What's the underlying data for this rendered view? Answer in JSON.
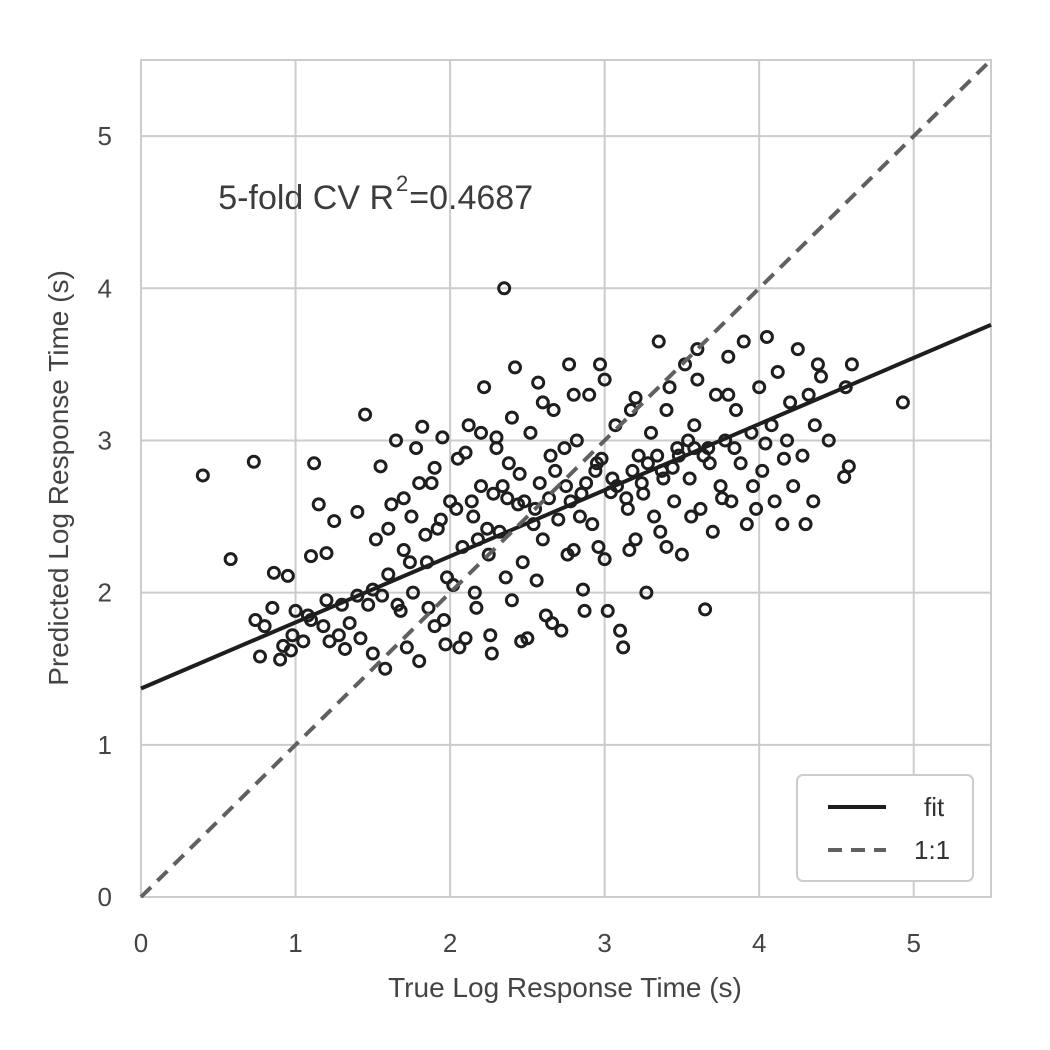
{
  "chart_data": {
    "type": "scatter",
    "xlabel": "True Log Response Time (s)",
    "ylabel": "Predicted Log Response Time (s)",
    "xlim": [
      0,
      5.5
    ],
    "ylim": [
      0,
      5.5
    ],
    "x_ticks": [
      "0",
      "1",
      "2",
      "3",
      "4",
      "5"
    ],
    "y_ticks": [
      "0",
      "1",
      "2",
      "3",
      "4",
      "5"
    ],
    "grid": true,
    "annotation": {
      "prefix": "5-fold CV R",
      "superscript": "2",
      "suffix": "=0.4687",
      "x": 0.5,
      "y": 4.6
    },
    "marker": "open-circle",
    "marker_color": "#1e1e1e",
    "series": [
      {
        "name": "fit",
        "style": "solid",
        "color": "#1e1e1e",
        "intercept": 1.37,
        "slope": 0.4345
      },
      {
        "name": "1:1",
        "style": "dashed",
        "color": "#606060",
        "intercept": 0,
        "slope": 1
      }
    ],
    "legend_position": "bottom-right",
    "points": [
      [
        0.4,
        2.77
      ],
      [
        0.58,
        2.22
      ],
      [
        0.73,
        2.86
      ],
      [
        0.74,
        1.82
      ],
      [
        0.77,
        1.58
      ],
      [
        0.8,
        1.78
      ],
      [
        0.86,
        2.13
      ],
      [
        0.9,
        1.56
      ],
      [
        0.92,
        1.65
      ],
      [
        0.95,
        2.11
      ],
      [
        0.98,
        1.72
      ],
      [
        1.0,
        1.88
      ],
      [
        1.05,
        1.68
      ],
      [
        1.08,
        1.85
      ],
      [
        1.1,
        2.24
      ],
      [
        1.12,
        2.85
      ],
      [
        1.15,
        2.58
      ],
      [
        1.18,
        1.78
      ],
      [
        1.2,
        2.26
      ],
      [
        1.22,
        1.68
      ],
      [
        1.25,
        2.47
      ],
      [
        1.28,
        1.72
      ],
      [
        1.32,
        1.63
      ],
      [
        1.35,
        1.8
      ],
      [
        1.4,
        2.53
      ],
      [
        1.42,
        1.7
      ],
      [
        1.45,
        3.17
      ],
      [
        1.47,
        1.92
      ],
      [
        1.5,
        1.6
      ],
      [
        1.52,
        2.35
      ],
      [
        1.55,
        2.83
      ],
      [
        1.58,
        1.5
      ],
      [
        1.6,
        2.12
      ],
      [
        1.62,
        2.58
      ],
      [
        1.65,
        3.0
      ],
      [
        1.68,
        1.88
      ],
      [
        1.7,
        2.28
      ],
      [
        1.72,
        1.64
      ],
      [
        1.75,
        2.5
      ],
      [
        1.78,
        2.95
      ],
      [
        1.8,
        1.55
      ],
      [
        1.82,
        3.09
      ],
      [
        1.85,
        2.2
      ],
      [
        1.88,
        2.72
      ],
      [
        1.9,
        1.78
      ],
      [
        1.92,
        2.42
      ],
      [
        1.95,
        3.02
      ],
      [
        1.97,
        1.66
      ],
      [
        2.0,
        2.6
      ],
      [
        2.02,
        2.05
      ],
      [
        2.05,
        2.88
      ],
      [
        2.08,
        2.3
      ],
      [
        2.1,
        1.7
      ],
      [
        2.12,
        3.1
      ],
      [
        2.15,
        2.5
      ],
      [
        2.17,
        1.9
      ],
      [
        2.2,
        2.7
      ],
      [
        2.22,
        3.35
      ],
      [
        2.25,
        2.25
      ],
      [
        2.27,
        1.6
      ],
      [
        2.3,
        2.95
      ],
      [
        2.32,
        2.4
      ],
      [
        2.35,
        4.0
      ],
      [
        2.37,
        2.62
      ],
      [
        2.4,
        1.95
      ],
      [
        2.42,
        3.48
      ],
      [
        2.45,
        2.78
      ],
      [
        2.47,
        2.2
      ],
      [
        2.5,
        1.7
      ],
      [
        2.52,
        3.05
      ],
      [
        2.55,
        2.55
      ],
      [
        2.57,
        3.38
      ],
      [
        2.6,
        2.35
      ],
      [
        2.62,
        1.85
      ],
      [
        2.65,
        2.9
      ],
      [
        2.67,
        3.2
      ],
      [
        2.7,
        2.48
      ],
      [
        2.72,
        1.75
      ],
      [
        2.75,
        2.7
      ],
      [
        2.77,
        3.5
      ],
      [
        2.8,
        2.28
      ],
      [
        2.82,
        3.0
      ],
      [
        2.85,
        2.65
      ],
      [
        2.87,
        1.88
      ],
      [
        2.9,
        3.3
      ],
      [
        2.92,
        2.45
      ],
      [
        2.95,
        2.85
      ],
      [
        2.97,
        3.5
      ],
      [
        3.0,
        2.22
      ],
      [
        3.02,
        1.88
      ],
      [
        3.05,
        2.75
      ],
      [
        3.07,
        3.1
      ],
      [
        3.1,
        1.75
      ],
      [
        3.12,
        1.64
      ],
      [
        3.15,
        2.55
      ],
      [
        3.17,
        3.2
      ],
      [
        3.2,
        2.35
      ],
      [
        3.22,
        2.9
      ],
      [
        3.25,
        2.65
      ],
      [
        3.27,
        2.0
      ],
      [
        3.3,
        3.05
      ],
      [
        3.32,
        2.5
      ],
      [
        3.35,
        3.65
      ],
      [
        3.37,
        2.8
      ],
      [
        3.4,
        2.3
      ],
      [
        3.42,
        3.35
      ],
      [
        3.45,
        2.6
      ],
      [
        3.47,
        2.95
      ],
      [
        3.5,
        2.25
      ],
      [
        3.52,
        3.5
      ],
      [
        3.55,
        2.75
      ],
      [
        3.58,
        3.1
      ],
      [
        3.6,
        3.6
      ],
      [
        3.62,
        2.55
      ],
      [
        3.65,
        1.89
      ],
      [
        3.67,
        2.95
      ],
      [
        3.7,
        2.4
      ],
      [
        3.72,
        3.3
      ],
      [
        3.75,
        2.7
      ],
      [
        3.78,
        3.0
      ],
      [
        3.8,
        3.55
      ],
      [
        3.82,
        2.6
      ],
      [
        3.85,
        3.2
      ],
      [
        3.88,
        2.85
      ],
      [
        3.9,
        3.65
      ],
      [
        3.92,
        2.45
      ],
      [
        3.95,
        3.05
      ],
      [
        3.98,
        2.55
      ],
      [
        4.0,
        3.35
      ],
      [
        4.02,
        2.8
      ],
      [
        4.05,
        3.68
      ],
      [
        4.08,
        3.1
      ],
      [
        4.1,
        2.6
      ],
      [
        4.12,
        3.45
      ],
      [
        4.15,
        2.45
      ],
      [
        4.18,
        3.0
      ],
      [
        4.2,
        3.25
      ],
      [
        4.22,
        2.7
      ],
      [
        4.25,
        3.6
      ],
      [
        4.28,
        2.9
      ],
      [
        4.3,
        2.45
      ],
      [
        4.32,
        3.3
      ],
      [
        4.35,
        2.6
      ],
      [
        4.38,
        3.5
      ],
      [
        4.4,
        3.42
      ],
      [
        4.45,
        3.0
      ],
      [
        4.55,
        2.76
      ],
      [
        4.56,
        3.35
      ],
      [
        4.58,
        2.83
      ],
      [
        4.6,
        3.5
      ],
      [
        4.93,
        3.25
      ],
      [
        1.98,
        2.1
      ],
      [
        2.18,
        2.35
      ],
      [
        2.28,
        2.65
      ],
      [
        2.38,
        2.85
      ],
      [
        2.48,
        2.6
      ],
      [
        2.58,
        2.72
      ],
      [
        2.68,
        2.8
      ],
      [
        2.78,
        2.6
      ],
      [
        2.88,
        2.72
      ],
      [
        2.98,
        2.88
      ],
      [
        3.08,
        2.7
      ],
      [
        3.18,
        2.8
      ],
      [
        3.28,
        2.85
      ],
      [
        3.38,
        2.75
      ],
      [
        3.48,
        2.9
      ],
      [
        3.58,
        2.95
      ],
      [
        3.68,
        2.85
      ],
      [
        2.14,
        2.6
      ],
      [
        2.34,
        2.7
      ],
      [
        2.54,
        2.45
      ],
      [
        2.74,
        2.95
      ],
      [
        2.94,
        2.8
      ],
      [
        3.14,
        2.62
      ],
      [
        3.34,
        2.9
      ],
      [
        3.54,
        3.0
      ],
      [
        1.74,
        2.2
      ],
      [
        1.84,
        2.38
      ],
      [
        1.94,
        2.48
      ],
      [
        2.04,
        2.55
      ],
      [
        2.24,
        2.42
      ],
      [
        2.44,
        2.58
      ],
      [
        2.64,
        2.62
      ],
      [
        2.84,
        2.5
      ],
      [
        3.04,
        2.66
      ],
      [
        3.24,
        2.72
      ],
      [
        3.44,
        2.82
      ],
      [
        3.64,
        2.9
      ],
      [
        3.84,
        2.95
      ],
      [
        4.04,
        2.98
      ],
      [
        2.06,
        1.64
      ],
      [
        2.26,
        1.72
      ],
      [
        2.46,
        1.68
      ],
      [
        2.66,
        1.8
      ],
      [
        2.86,
        2.02
      ],
      [
        1.56,
        1.98
      ],
      [
        1.66,
        1.92
      ],
      [
        1.76,
        2.0
      ],
      [
        1.86,
        1.9
      ],
      [
        1.96,
        1.82
      ],
      [
        2.16,
        2.0
      ],
      [
        2.36,
        2.1
      ],
      [
        2.56,
        2.08
      ],
      [
        2.76,
        2.25
      ],
      [
        2.96,
        2.3
      ],
      [
        3.16,
        2.28
      ],
      [
        3.36,
        2.4
      ],
      [
        3.56,
        2.5
      ],
      [
        3.76,
        2.62
      ],
      [
        3.96,
        2.7
      ],
      [
        4.16,
        2.88
      ],
      [
        4.36,
        3.1
      ],
      [
        2.2,
        3.05
      ],
      [
        2.4,
        3.15
      ],
      [
        2.6,
        3.25
      ],
      [
        2.8,
        3.3
      ],
      [
        3.0,
        3.4
      ],
      [
        3.2,
        3.28
      ],
      [
        3.4,
        3.2
      ],
      [
        3.6,
        3.4
      ],
      [
        3.8,
        3.3
      ],
      [
        1.6,
        2.42
      ],
      [
        1.7,
        2.62
      ],
      [
        1.8,
        2.72
      ],
      [
        1.9,
        2.82
      ],
      [
        2.1,
        2.92
      ],
      [
        2.3,
        3.02
      ],
      [
        1.3,
        1.92
      ],
      [
        1.4,
        1.98
      ],
      [
        1.5,
        2.02
      ],
      [
        1.1,
        1.82
      ],
      [
        1.2,
        1.95
      ],
      [
        0.85,
        1.9
      ],
      [
        0.97,
        1.62
      ]
    ]
  },
  "legend": {
    "fit_label": "fit",
    "one_to_one_label": "1:1"
  }
}
